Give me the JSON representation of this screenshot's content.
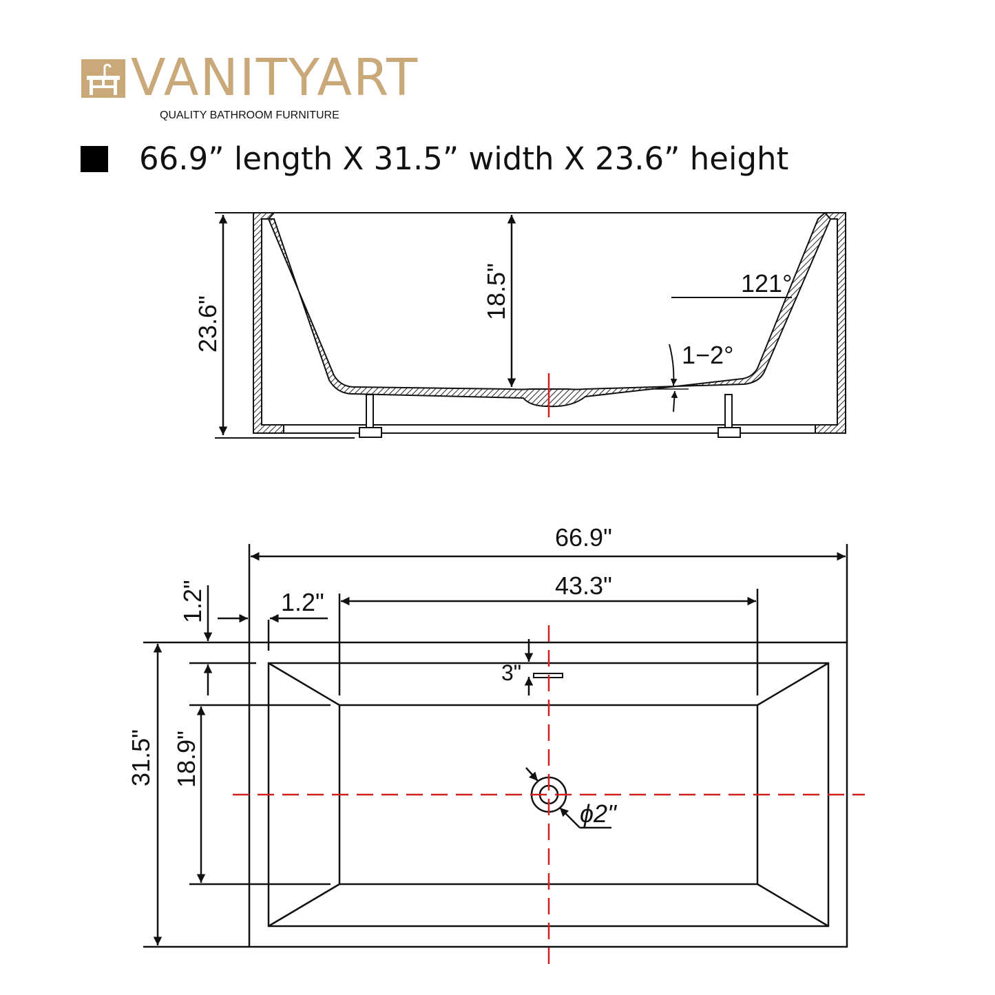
{
  "brand": {
    "name": "VANITYART",
    "tagline": "QUALITY BATHROOM FURNITURE",
    "color": "#c9a87a"
  },
  "headline": "66.9” length X 31.5” width X 23.6” height",
  "side_view": {
    "total_height": "23.6\"",
    "inner_depth": "18.5\"",
    "wall_angle": "121°",
    "floor_slope": "1−2°"
  },
  "plan_view": {
    "overall_length": "66.9\"",
    "floor_length": "43.3\"",
    "rim_width_side": "1.2\"",
    "rim_width_end": "1.2\"",
    "overall_width": "31.5\"",
    "floor_width": "18.9\"",
    "overflow_offset": "3\"",
    "drain_diameter": "ϕ2\""
  },
  "colors": {
    "centerline": "#d42020",
    "line": "#111111"
  }
}
